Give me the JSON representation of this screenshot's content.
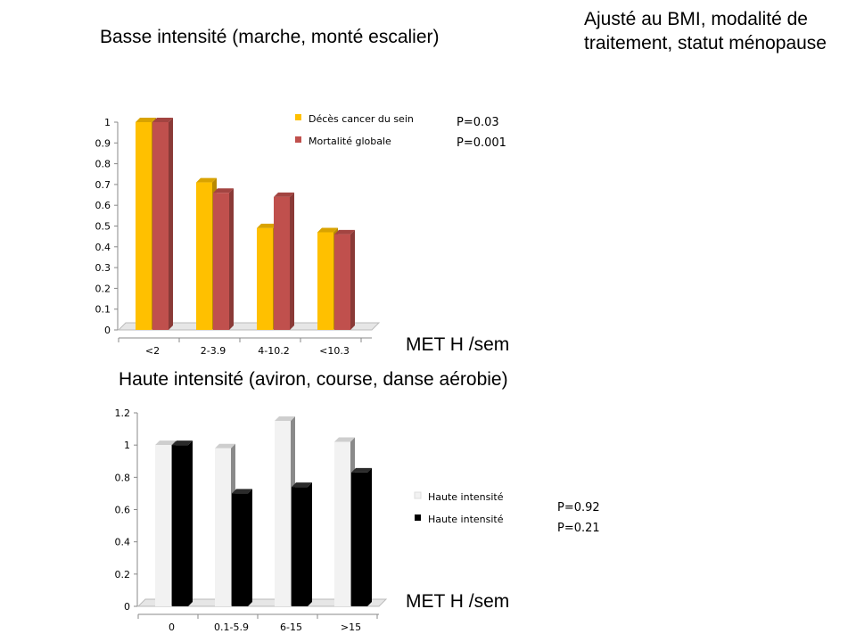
{
  "slide": {
    "note": "Ajusté au BMI, modalité de traitement, statut ménopause"
  },
  "chart_data": [
    {
      "type": "bar",
      "title": "Basse intensité (marche, monté escalier)",
      "xlabel": "MET H /sem",
      "ylabel": "",
      "categories": [
        "<2",
        "2-3.9",
        "4-10.2",
        "<10.3"
      ],
      "series": [
        {
          "name": "Décès cancer du sein",
          "values": [
            1.0,
            0.71,
            0.49,
            0.47
          ],
          "color": "#FFC000",
          "p_value": "P=0.03"
        },
        {
          "name": "Mortalité globale",
          "values": [
            1.0,
            0.66,
            0.64,
            0.46
          ],
          "color": "#C0504D",
          "p_value": "P=0.001"
        }
      ],
      "ylim": [
        0,
        1
      ],
      "yticks": [
        "0",
        "0.1",
        "0.2",
        "0.3",
        "0.4",
        "0.5",
        "0.6",
        "0.7",
        "0.8",
        "0.9",
        "1"
      ],
      "grid": false,
      "legend_position": "top-right"
    },
    {
      "type": "bar",
      "title": "Haute intensité (aviron, course, danse aérobie)",
      "xlabel": "MET H /sem",
      "ylabel": "",
      "categories": [
        "0",
        "0.1-5.9",
        "6-15",
        ">15"
      ],
      "series": [
        {
          "name": "Haute intensité",
          "values": [
            1.0,
            0.98,
            1.15,
            1.02
          ],
          "color": "#F2F2F2",
          "p_value": "P=0.92"
        },
        {
          "name": "Haute intensité",
          "values": [
            1.0,
            0.7,
            0.74,
            0.83
          ],
          "color": "#000000",
          "p_value": "P=0.21"
        }
      ],
      "ylim": [
        0,
        1.2
      ],
      "yticks": [
        "0",
        "0.2",
        "0.4",
        "0.6",
        "0.8",
        "1",
        "1.2"
      ],
      "grid": false,
      "legend_position": "right"
    }
  ]
}
